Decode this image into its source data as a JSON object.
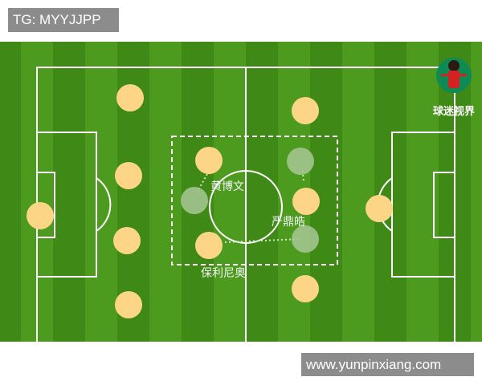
{
  "watermark_top": "TG: MYYJJPP",
  "watermark_bottom": "www.yunpinxiang.com",
  "logo_text": "球迷视界",
  "labels": {
    "player_a": "黄博文",
    "player_b": "严鼎皓",
    "player_c": "保利尼奥"
  },
  "colors": {
    "grass_dark": "#3f8a16",
    "grass_light": "#4c9a1e",
    "player": "#fdd587",
    "ghost": "#a9c796",
    "line": "#ffffff"
  }
}
